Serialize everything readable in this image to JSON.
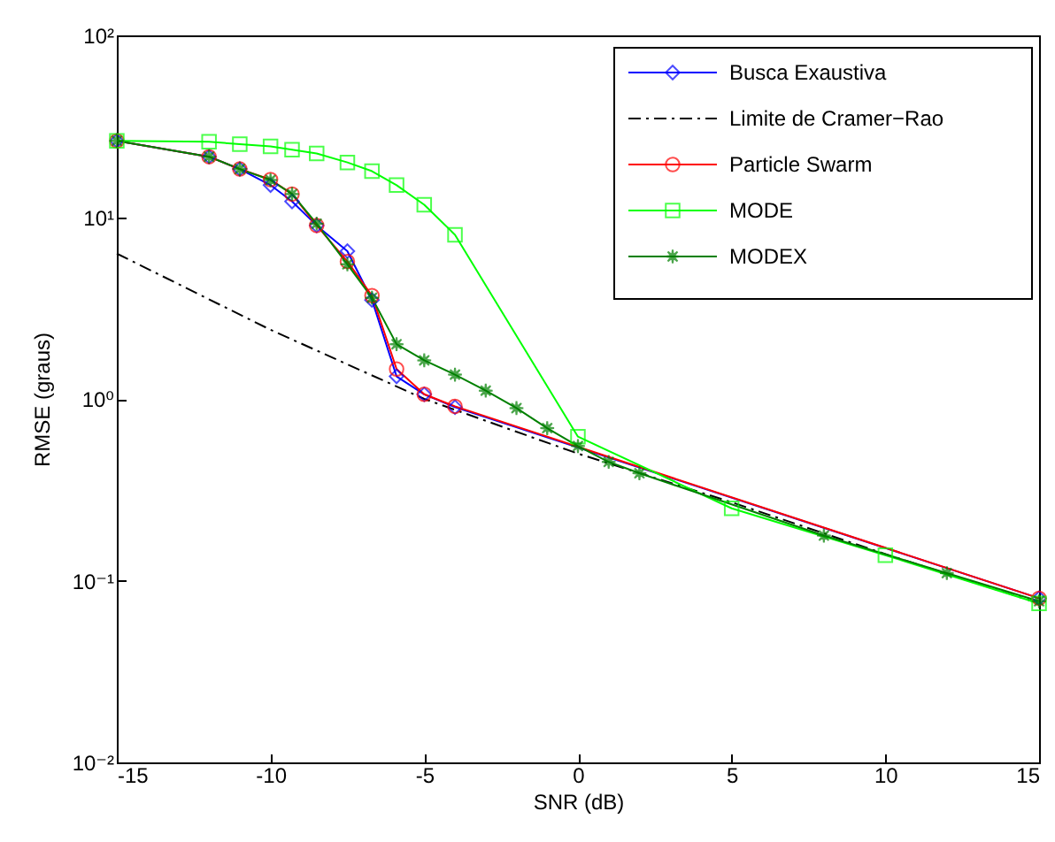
{
  "chart_data": {
    "type": "line",
    "xlabel": "SNR (dB)",
    "ylabel": "RMSE (graus)",
    "log": "y",
    "grid": false,
    "legend": "top right",
    "xlim": [
      -15,
      15
    ],
    "xticks": [
      -15,
      -10,
      -5,
      0,
      5,
      10,
      15
    ],
    "ylim": [
      0.01,
      100
    ],
    "yticks": [
      {
        "value": 0.01,
        "label": "10⁻²"
      },
      {
        "value": 0.1,
        "label": "10⁻¹"
      },
      {
        "value": 1,
        "label": "10⁰"
      },
      {
        "value": 10,
        "label": "10¹"
      },
      {
        "value": 100,
        "label": "10²"
      }
    ],
    "series": [
      {
        "name": "Busca Exaustiva",
        "color": "#0000ff",
        "marker": "diamond",
        "line_style": "solid",
        "x": [
          -15,
          -12,
          -11,
          -10,
          -9.3,
          -8.5,
          -7.5,
          -6.7,
          -5.9,
          -5,
          -4,
          15
        ],
        "values": [
          26.3,
          21.5,
          18.4,
          15,
          12.2,
          9.0,
          6.5,
          3.5,
          1.33,
          1.06,
          0.9,
          0.08
        ]
      },
      {
        "name": "Limite de Cramer−Rao",
        "color": "#000000",
        "marker": "none",
        "line_style": "dashed",
        "x": [
          -15,
          -10,
          -5,
          0,
          5,
          10,
          15
        ],
        "values": [
          6.3,
          2.4,
          1.0,
          0.5,
          0.27,
          0.14,
          0.075
        ]
      },
      {
        "name": "Particle Swarm",
        "color": "#ff0000",
        "marker": "circle",
        "line_style": "solid",
        "x": [
          -15,
          -12,
          -11,
          -10,
          -9.3,
          -8.5,
          -7.5,
          -6.7,
          -5.9,
          -5,
          -4,
          15
        ],
        "values": [
          26.3,
          21.5,
          18.4,
          16.1,
          13.4,
          9.0,
          5.7,
          3.7,
          1.46,
          1.06,
          0.91,
          0.08
        ]
      },
      {
        "name": "MODE",
        "color": "#00ff00",
        "marker": "square",
        "line_style": "solid",
        "x": [
          -15,
          -12,
          -11,
          -10,
          -9.3,
          -8.5,
          -7.5,
          -6.7,
          -5.9,
          -5,
          -4,
          0,
          5,
          10,
          15
        ],
        "values": [
          26.3,
          26,
          25.2,
          24.5,
          23.5,
          22.4,
          20,
          17.9,
          15,
          11.7,
          8.0,
          0.62,
          0.25,
          0.138,
          0.075
        ]
      },
      {
        "name": "MODEX",
        "color": "#008000",
        "marker": "star",
        "line_style": "solid",
        "x": [
          -15,
          -12,
          -11,
          -10,
          -9.3,
          -8.5,
          -7.5,
          -6.7,
          -5.9,
          -5,
          -4,
          -3,
          -2,
          -1,
          0,
          1,
          2,
          8,
          12,
          15
        ],
        "values": [
          26.3,
          21.5,
          18.4,
          16,
          13.4,
          9.2,
          5.5,
          3.6,
          2.0,
          1.63,
          1.36,
          1.11,
          0.89,
          0.69,
          0.55,
          0.45,
          0.39,
          0.177,
          0.11,
          0.077
        ]
      }
    ]
  }
}
